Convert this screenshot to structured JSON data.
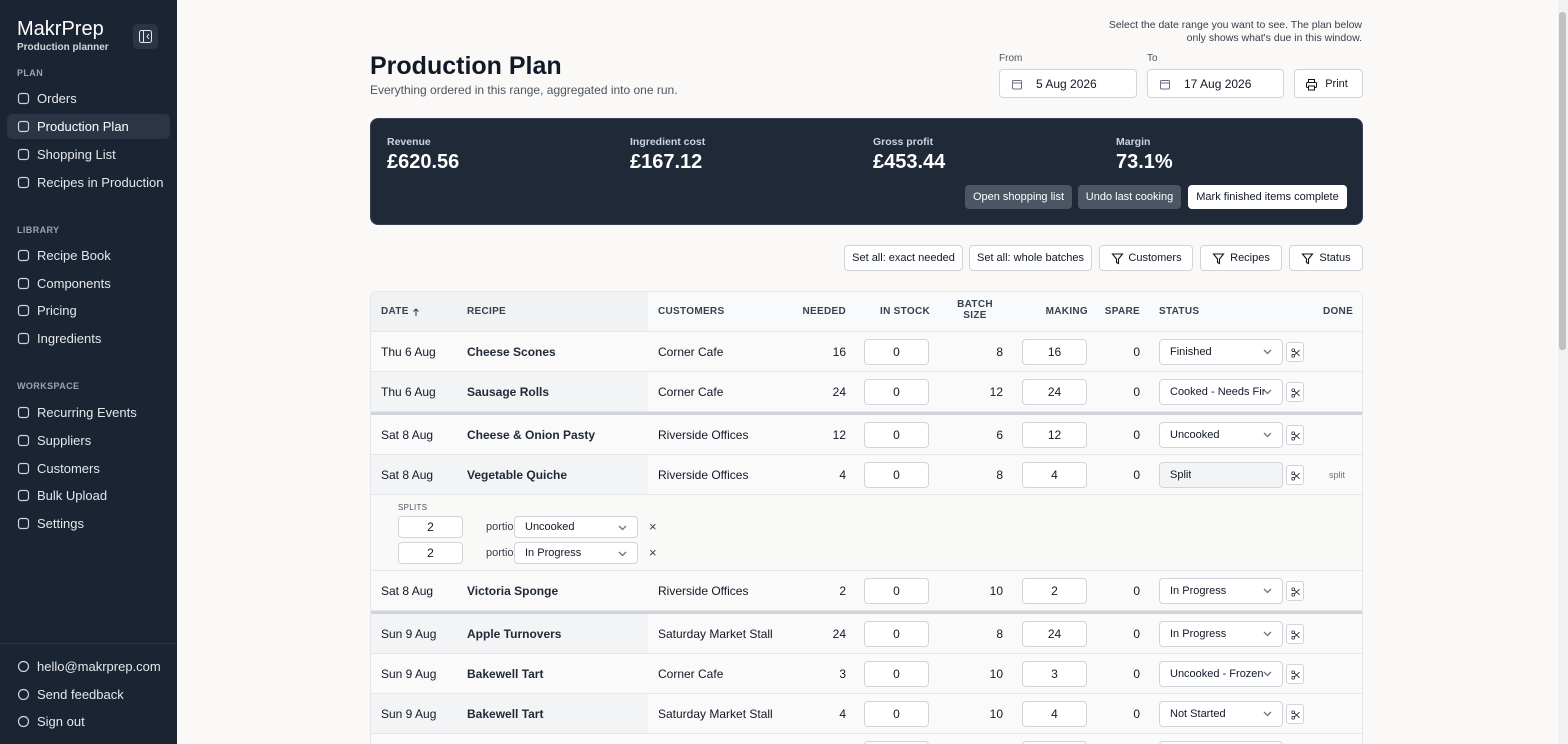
{
  "sidebar": {
    "brand": "MakrPrep",
    "tagline": "Production planner",
    "active": "Production Plan",
    "sections": [
      {
        "heading": "PLAN",
        "items": [
          "Orders",
          "Production Plan",
          "Shopping List",
          "Recipes in Production"
        ]
      },
      {
        "heading": "LIBRARY",
        "items": [
          "Recipe Book",
          "Components",
          "Pricing",
          "Ingredients"
        ]
      },
      {
        "heading": "WORKSPACE",
        "items": [
          "Recurring Events",
          "Suppliers",
          "Customers",
          "Bulk Upload",
          "Settings"
        ]
      }
    ],
    "footer": [
      "hello@makrprep.com",
      "Send feedback",
      "Sign out"
    ]
  },
  "header": {
    "title": "Production Plan",
    "subtitle": "Everything ordered in this range, aggregated into one run.",
    "hint": "Select the date range you want to see. The plan below only shows what's due in this window.",
    "from_label": "From",
    "from": "5 Aug 2026",
    "to_label": "To",
    "to": "17 Aug 2026",
    "print": "Print"
  },
  "summary": {
    "metrics": [
      {
        "label": "Revenue",
        "value": "£620.56"
      },
      {
        "label": "Ingredient cost",
        "value": "£167.12"
      },
      {
        "label": "Gross profit",
        "value": "£453.44"
      },
      {
        "label": "Margin",
        "value": "73.1%"
      }
    ],
    "actions": [
      "Open shopping list",
      "Undo last cooking",
      "Mark finished items complete"
    ]
  },
  "toolbar": [
    "Set all: exact needed",
    "Set all: whole batches",
    "Customers",
    "Recipes",
    "Status"
  ],
  "table": {
    "columns": [
      "DATE",
      "RECIPE",
      "CUSTOMERS",
      "NEEDED",
      "IN STOCK",
      "BATCH SIZE",
      "MAKING",
      "SPARE",
      "STATUS",
      "DONE"
    ],
    "groups": [
      {
        "rows": [
          {
            "date": "Thu 6 Aug",
            "recipe": "Cheese Scones",
            "customers": "Corner Cafe",
            "needed": 16,
            "in_stock": 0,
            "batch_size": 8,
            "making": 16,
            "spare": 0,
            "status": "Finished"
          },
          {
            "date": "Thu 6 Aug",
            "recipe": "Sausage Rolls",
            "customers": "Corner Cafe",
            "needed": 24,
            "in_stock": 0,
            "batch_size": 12,
            "making": 24,
            "spare": 0,
            "status": "Cooked - Needs Fin"
          }
        ]
      },
      {
        "rows": [
          {
            "date": "Sat 8 Aug",
            "recipe": "Cheese & Onion Pasty",
            "customers": "Riverside Offices",
            "needed": 12,
            "in_stock": 0,
            "batch_size": 6,
            "making": 12,
            "spare": 0,
            "status": "Uncooked"
          },
          {
            "date": "Sat 8 Aug",
            "recipe": "Vegetable Quiche",
            "customers": "Riverside Offices",
            "needed": 4,
            "in_stock": 0,
            "batch_size": 8,
            "making": 4,
            "spare": 0,
            "status": "Split",
            "done": "split",
            "splits_heading": "SPLITS",
            "splits": [
              {
                "portions": 2,
                "unit": "portions",
                "status": "Uncooked"
              },
              {
                "portions": 2,
                "unit": "portions",
                "status": "In Progress"
              }
            ]
          },
          {
            "date": "Sat 8 Aug",
            "recipe": "Victoria Sponge",
            "customers": "Riverside Offices",
            "needed": 2,
            "in_stock": 0,
            "batch_size": 10,
            "making": 2,
            "spare": 0,
            "status": "In Progress"
          }
        ]
      },
      {
        "rows": [
          {
            "date": "Sun 9 Aug",
            "recipe": "Apple Turnovers",
            "customers": "Saturday Market Stall",
            "needed": 24,
            "in_stock": 0,
            "batch_size": 8,
            "making": 24,
            "spare": 0,
            "status": "In Progress"
          },
          {
            "date": "Sun 9 Aug",
            "recipe": "Bakewell Tart",
            "customers": "Corner Cafe",
            "needed": 3,
            "in_stock": 0,
            "batch_size": 10,
            "making": 3,
            "spare": 0,
            "status": "Uncooked - Frozen"
          },
          {
            "date": "Sun 9 Aug",
            "recipe": "Bakewell Tart",
            "customers": "Saturday Market Stall",
            "needed": 4,
            "in_stock": 0,
            "batch_size": 10,
            "making": 4,
            "spare": 0,
            "status": "Not Started"
          }
        ]
      }
    ]
  }
}
